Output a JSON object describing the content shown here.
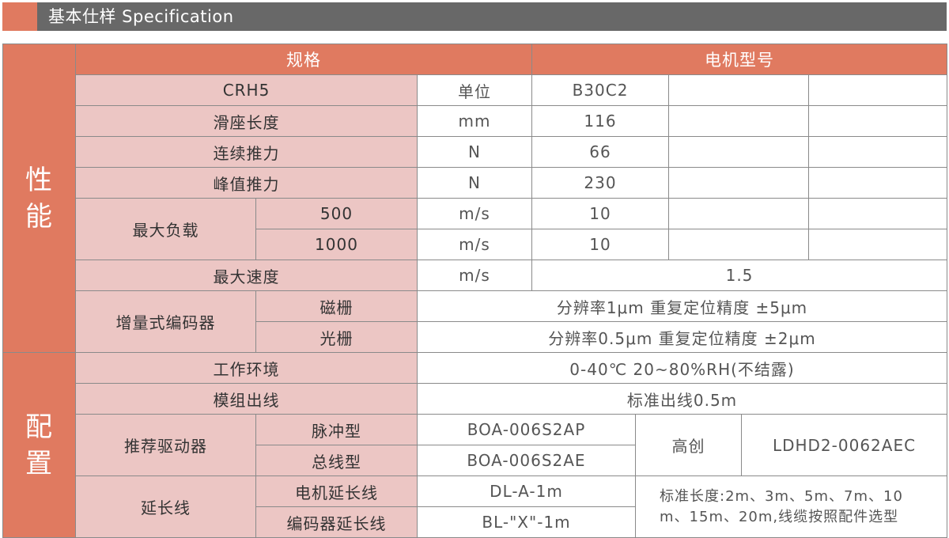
{
  "header": {
    "title": "基本仕样 Specification"
  },
  "colors": {
    "accent": "#e07a60",
    "pink": "#ecc6c4",
    "header_bg": "#686868"
  },
  "table": {
    "col_spec": "规格",
    "col_model": "电机型号",
    "cat_perf": [
      "性",
      "能"
    ],
    "cat_conf": [
      "配",
      "置"
    ],
    "model_row": {
      "label": "CRH5",
      "unit": "单位",
      "value": "B30C2"
    },
    "slide_len": {
      "label": "滑座长度",
      "unit": "mm",
      "value": "116"
    },
    "cont_force": {
      "label": "连续推力",
      "unit": "N",
      "value": "66"
    },
    "peak_force": {
      "label": "峰值推力",
      "unit": "N",
      "value": "230"
    },
    "max_load": {
      "label": "最大负载",
      "rows": [
        {
          "sub": "500",
          "unit": "m/s",
          "value": "10"
        },
        {
          "sub": "1000",
          "unit": "m/s",
          "value": "10"
        }
      ]
    },
    "max_speed": {
      "label": "最大速度",
      "unit": "m/s",
      "value": "1.5"
    },
    "encoder": {
      "label": "增量式编码器",
      "rows": [
        {
          "sub": "磁栅",
          "value": "分辨率1μm 重复定位精度 ±5μm"
        },
        {
          "sub": "光栅",
          "value": "分辨率0.5μm 重复定位精度 ±2μm"
        }
      ]
    },
    "env": {
      "label": "工作环境",
      "value": "0-40℃ 20~80%RH(不结露)"
    },
    "outlet": {
      "label": "模组出线",
      "value": "标准出线0.5m"
    },
    "driver": {
      "label": "推荐驱动器",
      "rows": [
        {
          "sub": "脉冲型",
          "value": "BOA-006S2AP"
        },
        {
          "sub": "总线型",
          "value": "BOA-006S2AE"
        }
      ],
      "brand": "高创",
      "model": "LDHD2-0062AEC"
    },
    "ext": {
      "label": "延长线",
      "rows": [
        {
          "sub": "电机延长线",
          "value": "DL-A-1m"
        },
        {
          "sub": "编码器延长线",
          "value": "BL-\"X\"-1m"
        }
      ],
      "note_line1": "标准长度:2m、3m、5m、7m、10",
      "note_line2": "m、15m、20m,线缆按照配件选型"
    }
  }
}
